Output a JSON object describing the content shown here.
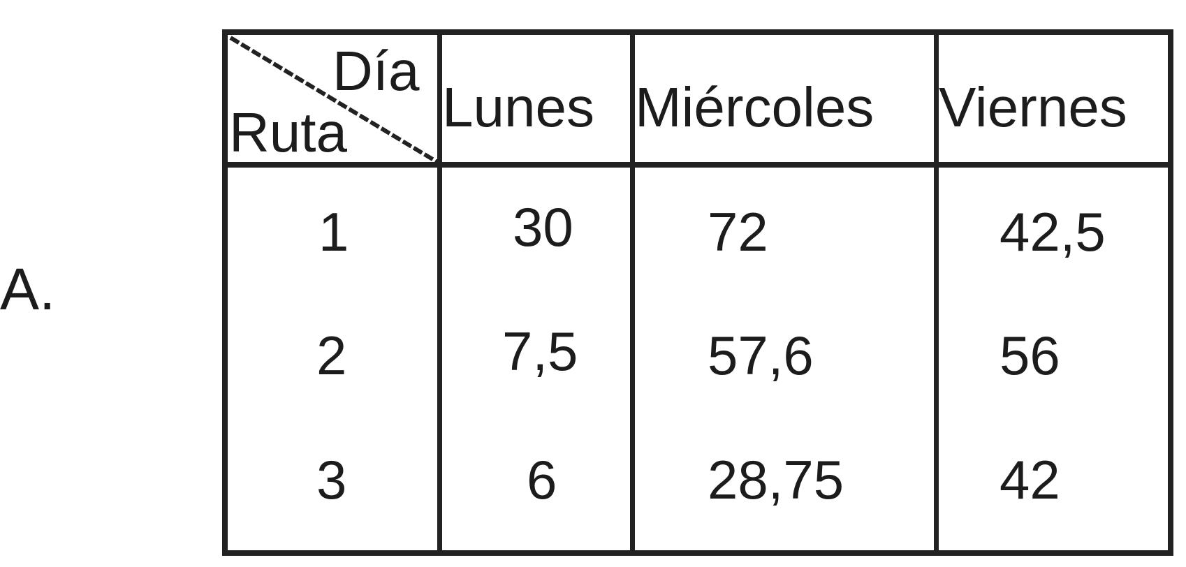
{
  "option_label": "A.",
  "table": {
    "corner": {
      "top_label": "Día",
      "bottom_label": "Ruta"
    },
    "columns": [
      "Lunes",
      "Miércoles",
      "Viernes"
    ],
    "rows": [
      {
        "ruta": "1",
        "values": [
          "30",
          "72",
          "42,5"
        ]
      },
      {
        "ruta": "2",
        "values": [
          "7,5",
          "57,6",
          "56"
        ]
      },
      {
        "ruta": "3",
        "values": [
          "6",
          "28,75",
          "42"
        ]
      }
    ]
  }
}
